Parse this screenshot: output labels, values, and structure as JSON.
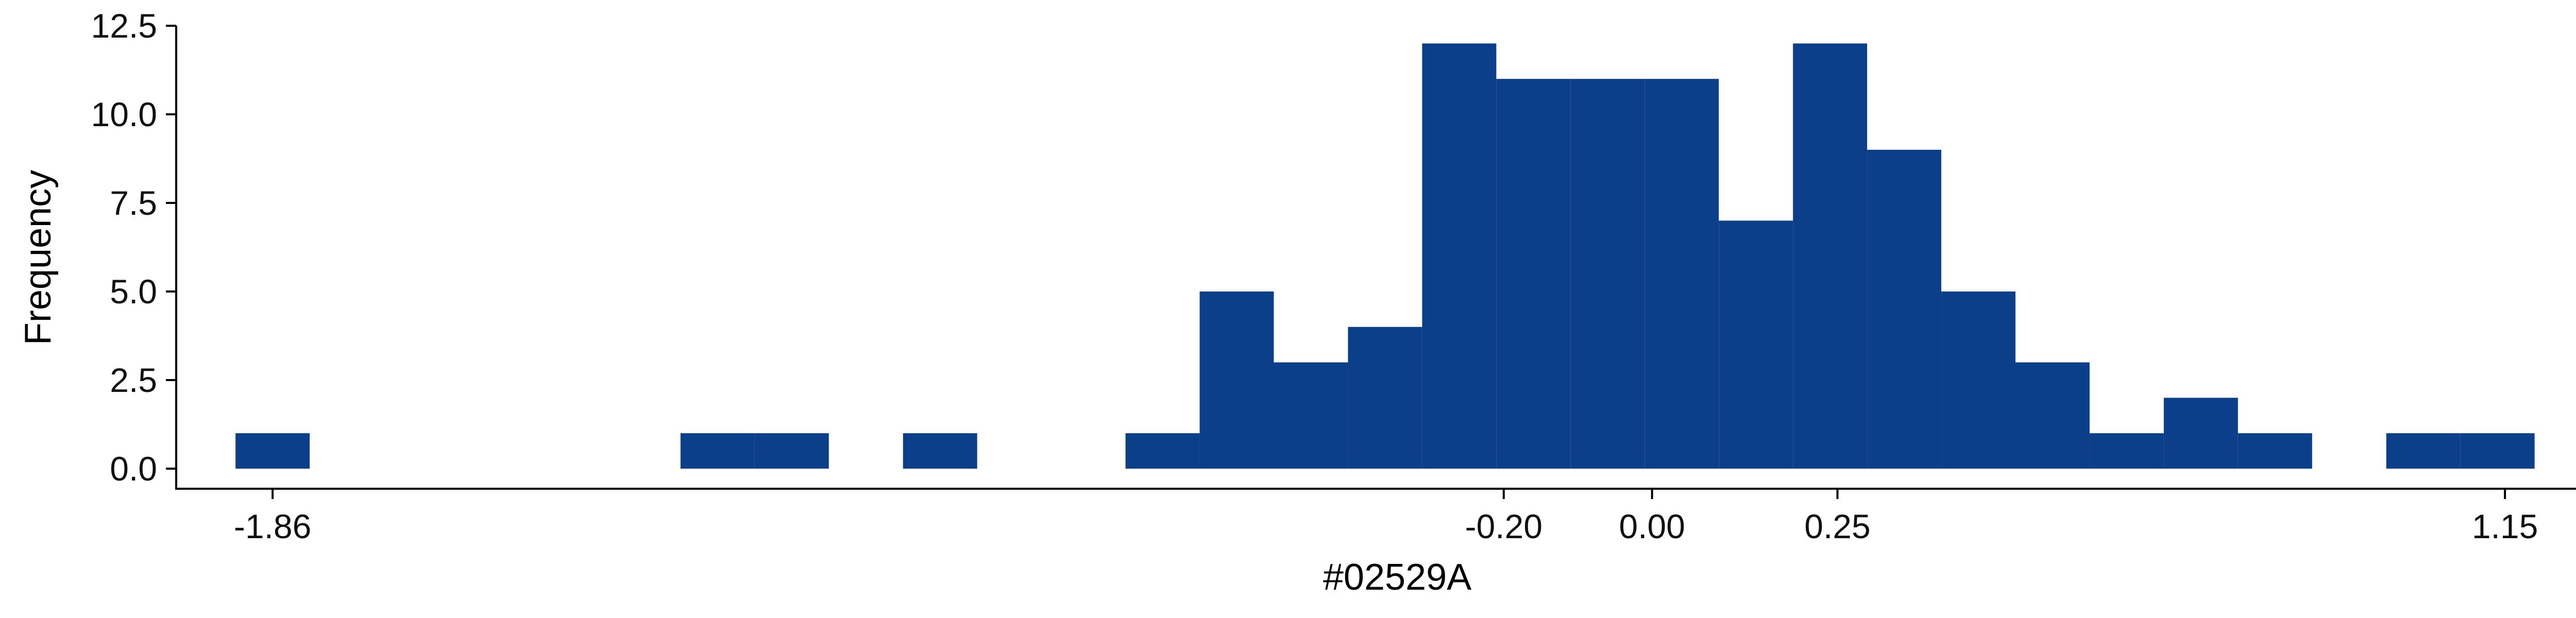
{
  "chart_data": {
    "type": "bar",
    "title": "",
    "xlabel": "#02529A",
    "ylabel": "Frequency",
    "xlim": [
      -1.99,
      1.3
    ],
    "ylim": [
      0,
      12.5
    ],
    "x_ticks": [
      {
        "value": -1.86,
        "label": "-1.86"
      },
      {
        "value": -0.2,
        "label": "-0.20"
      },
      {
        "value": 0.0,
        "label": "0.00"
      },
      {
        "value": 0.25,
        "label": "0.25"
      },
      {
        "value": 1.15,
        "label": "1.15"
      }
    ],
    "y_ticks": [
      {
        "value": 0.0,
        "label": "0.0"
      },
      {
        "value": 2.5,
        "label": "2.5"
      },
      {
        "value": 5.0,
        "label": "5.0"
      },
      {
        "value": 7.5,
        "label": "7.5"
      },
      {
        "value": 10.0,
        "label": "10.0"
      },
      {
        "value": 12.5,
        "label": "12.5"
      }
    ],
    "bin_width": 0.1,
    "bins": [
      {
        "start": -1.91,
        "count": 1
      },
      {
        "start": -1.31,
        "count": 1
      },
      {
        "start": -1.21,
        "count": 1
      },
      {
        "start": -1.01,
        "count": 1
      },
      {
        "start": -0.71,
        "count": 1
      },
      {
        "start": -0.61,
        "count": 5
      },
      {
        "start": -0.51,
        "count": 3
      },
      {
        "start": -0.41,
        "count": 4
      },
      {
        "start": -0.31,
        "count": 12
      },
      {
        "start": -0.21,
        "count": 11
      },
      {
        "start": -0.11,
        "count": 11
      },
      {
        "start": -0.01,
        "count": 11
      },
      {
        "start": 0.09,
        "count": 7
      },
      {
        "start": 0.19,
        "count": 12
      },
      {
        "start": 0.29,
        "count": 9
      },
      {
        "start": 0.39,
        "count": 5
      },
      {
        "start": 0.49,
        "count": 3
      },
      {
        "start": 0.59,
        "count": 1
      },
      {
        "start": 0.69,
        "count": 2
      },
      {
        "start": 0.79,
        "count": 1
      },
      {
        "start": 0.99,
        "count": 1
      },
      {
        "start": 1.09,
        "count": 1
      }
    ],
    "bar_color": "#0B3F8A",
    "grid": false,
    "legend": "none"
  }
}
